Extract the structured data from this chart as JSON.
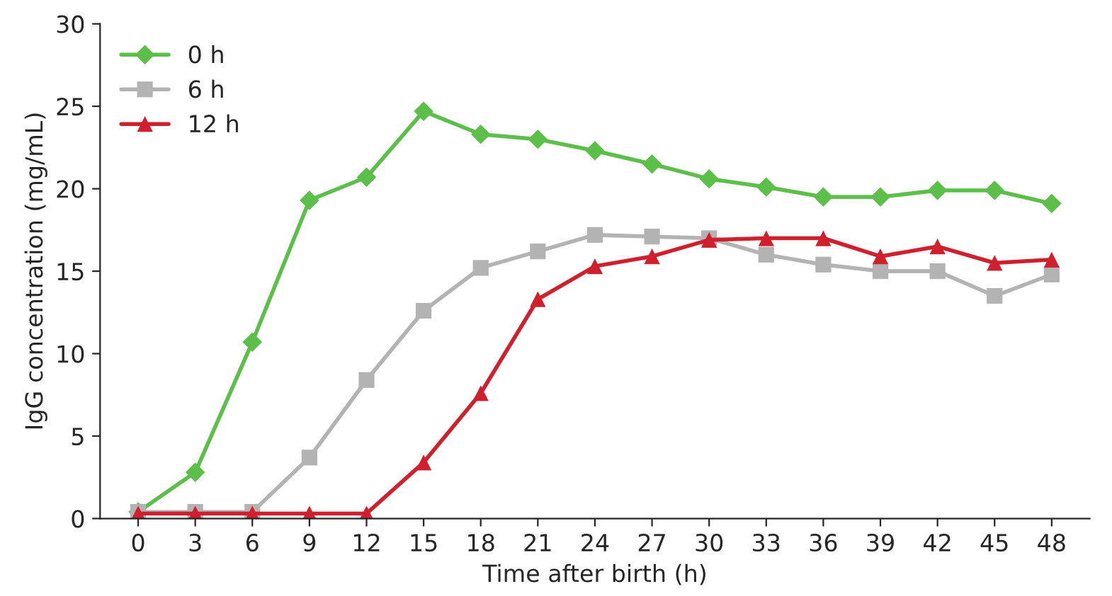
{
  "chart_data": {
    "type": "line",
    "xlabel": "Time after birth (h)",
    "ylabel": "IgG concentration (mg/mL)",
    "x": [
      0,
      3,
      6,
      9,
      12,
      15,
      18,
      21,
      24,
      27,
      30,
      33,
      36,
      39,
      42,
      45,
      48
    ],
    "xlim": [
      -2,
      50
    ],
    "xticks": [
      0,
      3,
      6,
      9,
      12,
      15,
      18,
      21,
      24,
      27,
      30,
      33,
      36,
      39,
      42,
      45,
      48
    ],
    "ylim": [
      0,
      30
    ],
    "yticks": [
      0,
      5,
      10,
      15,
      20,
      25,
      30
    ],
    "legend": "top left",
    "grid": false,
    "series": [
      {
        "name": "0 h",
        "color": "#5cbf4a",
        "marker": "diamond",
        "values": [
          0.4,
          2.8,
          10.7,
          19.3,
          20.7,
          24.7,
          23.3,
          23.0,
          22.3,
          21.5,
          20.6,
          20.1,
          19.5,
          19.5,
          19.9,
          19.9,
          19.1
        ]
      },
      {
        "name": "6 h",
        "color": "#b3b3b3",
        "marker": "square",
        "values": [
          0.4,
          0.4,
          0.4,
          3.7,
          8.4,
          12.6,
          15.2,
          16.2,
          17.2,
          17.1,
          17.0,
          16.0,
          15.4,
          15.0,
          15.0,
          13.5,
          14.8
        ]
      },
      {
        "name": "12 h",
        "color": "#d0202e",
        "marker": "triangle",
        "values": [
          0.3,
          0.3,
          0.3,
          0.3,
          0.3,
          3.4,
          7.6,
          13.3,
          15.3,
          15.9,
          16.9,
          17.0,
          17.0,
          15.9,
          16.5,
          15.5,
          15.7
        ]
      }
    ]
  }
}
